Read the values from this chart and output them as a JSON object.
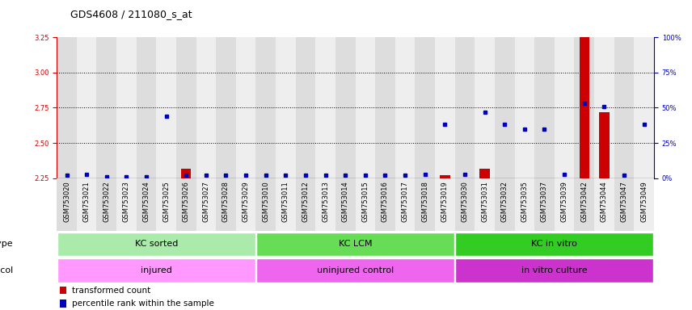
{
  "title": "GDS4608 / 211080_s_at",
  "samples": [
    "GSM753020",
    "GSM753021",
    "GSM753022",
    "GSM753023",
    "GSM753024",
    "GSM753025",
    "GSM753026",
    "GSM753027",
    "GSM753028",
    "GSM753029",
    "GSM753010",
    "GSM753011",
    "GSM753012",
    "GSM753013",
    "GSM753014",
    "GSM753015",
    "GSM753016",
    "GSM753017",
    "GSM753018",
    "GSM753019",
    "GSM753030",
    "GSM753031",
    "GSM753032",
    "GSM753035",
    "GSM753037",
    "GSM753039",
    "GSM753042",
    "GSM753044",
    "GSM753047",
    "GSM753049"
  ],
  "red_values": [
    2.25,
    2.25,
    2.25,
    2.25,
    2.25,
    2.25,
    2.32,
    2.25,
    2.25,
    2.25,
    2.25,
    2.25,
    2.25,
    2.25,
    2.25,
    2.25,
    2.25,
    2.25,
    2.25,
    2.27,
    2.25,
    2.32,
    2.25,
    2.25,
    2.25,
    2.25,
    3.25,
    2.72,
    2.25,
    2.25
  ],
  "blue_values_pct": [
    2,
    3,
    1,
    1,
    1,
    44,
    2,
    2,
    2,
    2,
    2,
    2,
    2,
    2,
    2,
    2,
    2,
    2,
    3,
    38,
    3,
    47,
    38,
    35,
    35,
    3,
    53,
    51,
    2,
    38
  ],
  "ylim_left": [
    2.25,
    3.25
  ],
  "ylim_right": [
    0,
    100
  ],
  "yticks_left": [
    2.25,
    2.5,
    2.75,
    3.0,
    3.25
  ],
  "yticks_right": [
    0,
    25,
    50,
    75,
    100
  ],
  "cell_type_groups": [
    {
      "label": "KC sorted",
      "start": 0,
      "end": 9,
      "color": "#AAEAAA"
    },
    {
      "label": "KC LCM",
      "start": 10,
      "end": 19,
      "color": "#66DD55"
    },
    {
      "label": "KC in vitro",
      "start": 20,
      "end": 29,
      "color": "#33CC22"
    }
  ],
  "protocol_groups": [
    {
      "label": "injured",
      "start": 0,
      "end": 9,
      "color": "#FF99FF"
    },
    {
      "label": "uninjured control",
      "start": 10,
      "end": 19,
      "color": "#EE66EE"
    },
    {
      "label": "in vitro culture",
      "start": 20,
      "end": 29,
      "color": "#CC33CC"
    }
  ],
  "bar_color": "#CC0000",
  "dot_color": "#0000BB",
  "background_color": "#FFFFFF",
  "plot_bg_color": "#FFFFFF",
  "col_bg_even": "#DDDDDD",
  "col_bg_odd": "#EEEEEE",
  "title_fontsize": 9,
  "tick_fontsize": 6,
  "label_fontsize": 7.5,
  "band_label_fontsize": 8
}
